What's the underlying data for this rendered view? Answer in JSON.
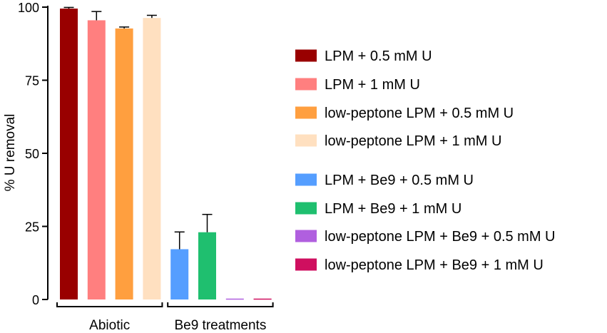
{
  "chart_data": {
    "type": "bar",
    "title": "",
    "xlabel": "",
    "ylabel": "% U removal",
    "ylim": [
      0,
      100
    ],
    "yticks": [
      "0",
      "25",
      "50",
      "75",
      "100"
    ],
    "ytick_values": [
      0,
      25,
      50,
      75,
      100
    ],
    "grid": false,
    "legend_position": "right",
    "groups": [
      {
        "label": "Abiotic",
        "first_bar": 0,
        "last_bar": 3
      },
      {
        "label": "Be9 treatments",
        "first_bar": 4,
        "last_bar": 7
      }
    ],
    "bars": [
      {
        "name": "LPM + 0.5 mM U",
        "value": 99.5,
        "error": 0.4,
        "color": "#990000"
      },
      {
        "name": "LPM + 1 mM U",
        "value": 95.5,
        "error": 3.0,
        "color": "#ff7f7f"
      },
      {
        "name": "low-peptone LPM + 0.5 mM U",
        "value": 92.7,
        "error": 0.5,
        "color": "#ff9f3f"
      },
      {
        "name": "low-peptone LPM + 1 mM U",
        "value": 96.3,
        "error": 0.9,
        "color": "#ffe0c0"
      },
      {
        "name": "LPM + Be9 + 0.5 mM U",
        "value": 17.2,
        "error": 5.9,
        "color": "#559eff"
      },
      {
        "name": "LPM + Be9 + 1 mM U",
        "value": 23.0,
        "error": 6.1,
        "color": "#1fbf6f"
      },
      {
        "name": "low-peptone LPM + Be9 + 0.5 mM U",
        "value": 0.0,
        "error": 0.0,
        "color": "#b05fdf"
      },
      {
        "name": "low-peptone LPM + Be9 + 1 mM U",
        "value": 0.2,
        "error": 0.0,
        "color": "#cf0f5f"
      }
    ]
  }
}
